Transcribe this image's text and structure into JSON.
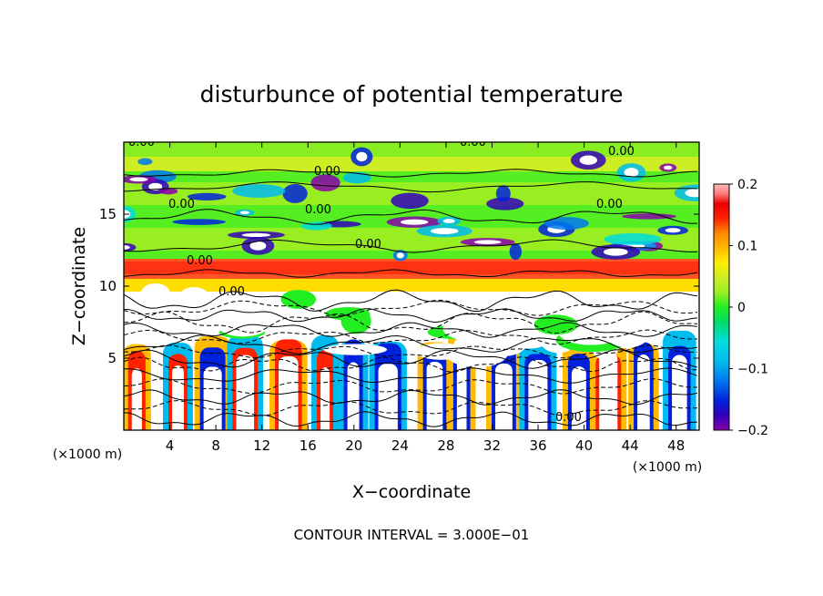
{
  "chart_data": {
    "type": "heatmap",
    "title": "disturbunce of potential temperature",
    "xlabel": "X−coordinate",
    "ylabel": "Z−coordinate",
    "x_unit_left": "(×1000 m)",
    "x_unit_right": "(×1000 m)",
    "footer": "CONTOUR INTERVAL = 3.000E−01",
    "xlim": [
      0,
      50
    ],
    "ylim": [
      0,
      20
    ],
    "xticks": [
      "4",
      "8",
      "12",
      "16",
      "20",
      "24",
      "28",
      "32",
      "36",
      "40",
      "44",
      "48"
    ],
    "yticks": [
      "5",
      "10",
      "15"
    ],
    "colorbar": {
      "range": [
        -0.2,
        0.2
      ],
      "tick_labels": [
        "0.2",
        "0.1",
        "0",
        "−0.1",
        "−0.2"
      ],
      "colors": [
        "#8800aa",
        "#3300bb",
        "#0022dd",
        "#0077ee",
        "#00bbee",
        "#00dddd",
        "#00dd66",
        "#22ee22",
        "#99ee22",
        "#ccee22",
        "#ffee00",
        "#ffbb00",
        "#ff8800",
        "#ff5500",
        "#ff2200",
        "#ee0000",
        "#ff7777",
        "#ffbbbb"
      ]
    },
    "contour_label": "0.00",
    "contour_interval": 0.3
  }
}
